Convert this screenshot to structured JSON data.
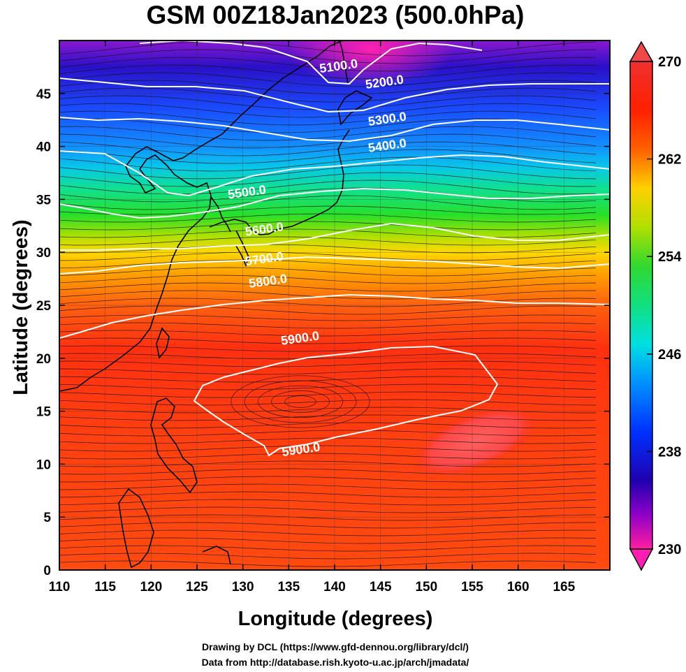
{
  "title": "GSM 00Z18Jan2023 (500.0hPa)",
  "xlabel": "Longitude (degrees)",
  "ylabel": "Latitude  (degrees)",
  "credits": [
    "Drawing by DCL (https://www.gfd-dennou.org/library/dcl/)",
    "Data from http://database.rish.kyoto-u.ac.jp/arch/jmadata/"
  ],
  "x_ticks": [
    "110",
    "115",
    "120",
    "125",
    "130",
    "135",
    "140",
    "145",
    "150",
    "155",
    "160",
    "165"
  ],
  "y_ticks": [
    "0",
    "5",
    "10",
    "15",
    "20",
    "25",
    "30",
    "35",
    "40",
    "45"
  ],
  "colorbar": {
    "ticks": [
      "270",
      "262",
      "254",
      "246",
      "238",
      "230"
    ],
    "colors": [
      "#ff1e96",
      "#b000c8",
      "#2a00c8",
      "#0030ff",
      "#0090ff",
      "#00d8e6",
      "#00e890",
      "#10e020",
      "#a0e000",
      "#ffe000",
      "#ffa000",
      "#ff5000",
      "#ff2000",
      "#f03030"
    ]
  },
  "contours": [
    {
      "label": "5100.0",
      "lon": 140.5,
      "lat": 47.2
    },
    {
      "label": "5200.0",
      "lon": 145.5,
      "lat": 45.7
    },
    {
      "label": "5300.0",
      "lon": 145.8,
      "lat": 42.2
    },
    {
      "label": "5400.0",
      "lon": 145.8,
      "lat": 39.7
    },
    {
      "label": "5500.0",
      "lon": 130.5,
      "lat": 35.3
    },
    {
      "label": "5600.0",
      "lon": 132.4,
      "lat": 31.8
    },
    {
      "label": "5700.0",
      "lon": 132.4,
      "lat": 29.0
    },
    {
      "label": "5800.0",
      "lon": 132.8,
      "lat": 26.9
    },
    {
      "label": "5900.0",
      "lon": 136.3,
      "lat": 21.5
    },
    {
      "label": "5900.0",
      "lon": 136.4,
      "lat": 11.0
    }
  ],
  "map_data": {
    "type": "shaded contour + streamline map",
    "variable_colorbar_units": "K",
    "lon_range": [
      110,
      170
    ],
    "lat_range": [
      0,
      50
    ]
  }
}
